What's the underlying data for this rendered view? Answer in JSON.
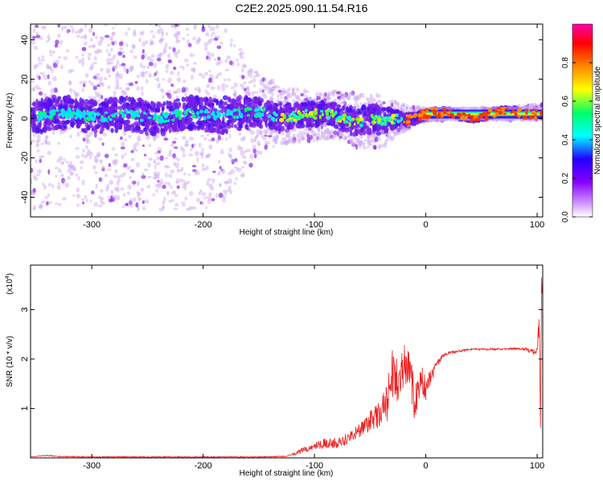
{
  "title": "C2E2.2025.090.11.54.R16",
  "chart_data": [
    {
      "type": "heatmap",
      "name": "spectrogram",
      "xlabel": "Height of straight line (km)",
      "ylabel": "Frequency (Hz)",
      "xlim": [
        -355,
        105
      ],
      "ylim": [
        -50,
        48
      ],
      "x_ticks": [
        -300,
        -200,
        -100,
        0,
        100
      ],
      "y_ticks": [
        -40,
        -20,
        0,
        20,
        40
      ],
      "colorbar": {
        "label": "Normalized spectral amplitude",
        "range": [
          0,
          1
        ],
        "ticks": [
          0.0,
          0.2,
          0.4,
          0.6,
          0.8
        ],
        "colors": [
          "#ffffff",
          "#cc88ff",
          "#8800ff",
          "#2200ff",
          "#00ffff",
          "#00ff66",
          "#ffff00",
          "#ff8800",
          "#ff0000",
          "#ff00aa"
        ]
      },
      "description_points": [
        {
          "x": -340,
          "center_freq": 2,
          "band_halfwidth": 8,
          "scatter_extent": 48
        },
        {
          "x": -300,
          "center_freq": 2,
          "band_halfwidth": 8,
          "scatter_extent": 48
        },
        {
          "x": -250,
          "center_freq": 1,
          "band_halfwidth": 8,
          "scatter_extent": 48
        },
        {
          "x": -200,
          "center_freq": 2,
          "band_halfwidth": 8,
          "scatter_extent": 48
        },
        {
          "x": -180,
          "center_freq": 3,
          "band_halfwidth": 9,
          "scatter_extent": 45
        },
        {
          "x": -150,
          "center_freq": 2,
          "band_halfwidth": 7,
          "scatter_extent": 20
        },
        {
          "x": -120,
          "center_freq": 2,
          "band_halfwidth": 6,
          "scatter_extent": 14
        },
        {
          "x": -100,
          "center_freq": 1,
          "band_halfwidth": 6,
          "scatter_extent": 12
        },
        {
          "x": -80,
          "center_freq": 2,
          "band_halfwidth": 6,
          "scatter_extent": 12
        },
        {
          "x": -60,
          "center_freq": -1,
          "band_halfwidth": 7,
          "scatter_extent": 14
        },
        {
          "x": -40,
          "center_freq": -2,
          "band_halfwidth": 7,
          "scatter_extent": 14
        },
        {
          "x": -25,
          "center_freq": 0,
          "band_halfwidth": 4,
          "scatter_extent": 8
        },
        {
          "x": 0,
          "center_freq": 2,
          "band_halfwidth": 2,
          "scatter_extent": 3
        },
        {
          "x": 40,
          "center_freq": 2,
          "band_halfwidth": 2,
          "scatter_extent": 3
        },
        {
          "x": 100,
          "center_freq": 3,
          "band_halfwidth": 2,
          "scatter_extent": 4
        }
      ]
    },
    {
      "type": "line",
      "name": "snr",
      "xlabel": "Height of straight line (km)",
      "ylabel": "SNR (10 * v/v)",
      "multiplier_label": "(x10",
      "multiplier_exp": "4",
      "multiplier_close": ")",
      "xlim": [
        -355,
        105
      ],
      "ylim": [
        0,
        3.9
      ],
      "x_ticks": [
        -300,
        -200,
        -100,
        0,
        100
      ],
      "y_ticks": [
        1,
        2,
        3
      ],
      "line_color": "#ee2222",
      "x": [
        -355,
        -340,
        -330,
        -300,
        -250,
        -200,
        -150,
        -125,
        -110,
        -100,
        -90,
        -80,
        -70,
        -60,
        -50,
        -40,
        -35,
        -30,
        -25,
        -20,
        -15,
        -10,
        -5,
        0,
        5,
        10,
        15,
        20,
        30,
        40,
        50,
        60,
        70,
        80,
        90,
        95,
        100,
        102,
        103,
        104,
        105
      ],
      "y": [
        0.02,
        0.05,
        0.03,
        0.02,
        0.02,
        0.02,
        0.02,
        0.03,
        0.15,
        0.25,
        0.3,
        0.3,
        0.4,
        0.55,
        0.75,
        0.9,
        1.1,
        1.7,
        1.6,
        1.9,
        1.9,
        1.1,
        1.6,
        1.4,
        1.65,
        1.9,
        2.05,
        2.12,
        2.16,
        2.2,
        2.2,
        2.2,
        2.2,
        2.21,
        2.2,
        2.15,
        2.15,
        2.6,
        0.8,
        3.7,
        3.4
      ],
      "noise": [
        0,
        0.01,
        0.01,
        0.01,
        0.01,
        0.01,
        0.01,
        0.01,
        0.06,
        0.08,
        0.1,
        0.1,
        0.12,
        0.15,
        0.2,
        0.3,
        0.4,
        0.5,
        0.5,
        0.5,
        0.45,
        0.4,
        0.35,
        0.25,
        0.15,
        0.08,
        0.04,
        0.03,
        0.02,
        0.02,
        0.02,
        0.02,
        0.02,
        0.02,
        0.03,
        0.05,
        0.1,
        0.5,
        0.3,
        0.3,
        0.3
      ]
    }
  ]
}
